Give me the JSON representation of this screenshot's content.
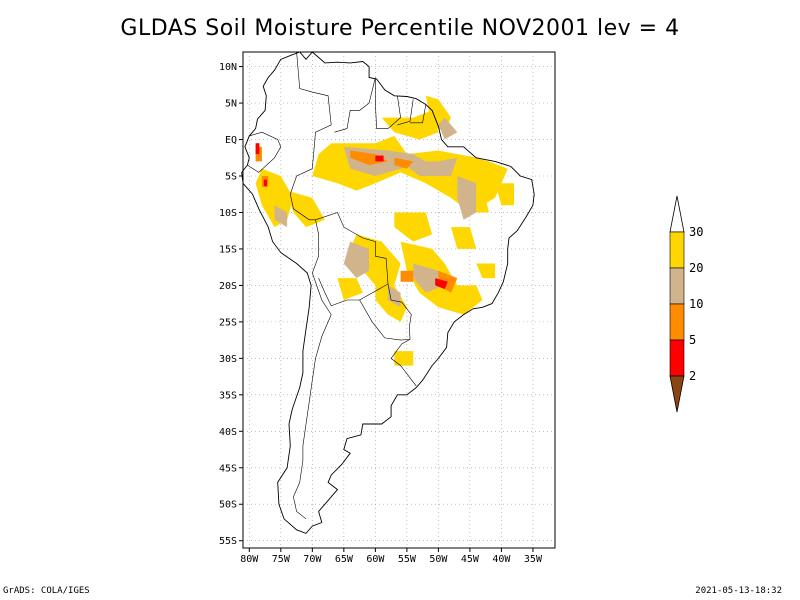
{
  "title": "GLDAS Soil Moisture Percentile NOV2001 lev = 4",
  "footer": {
    "left": "GrADS: COLA/IGES",
    "right": "2021-05-13-18:32"
  },
  "map": {
    "lat_labels": [
      "10N",
      "5N",
      "EQ",
      "5S",
      "10S",
      "15S",
      "20S",
      "25S",
      "30S",
      "35S",
      "40S",
      "45S",
      "50S",
      "55S"
    ],
    "lon_labels": [
      "80W",
      "75W",
      "70W",
      "65W",
      "60W",
      "55W",
      "50W",
      "45W",
      "40W",
      "35W"
    ],
    "lat_values": [
      10,
      5,
      0,
      -5,
      -10,
      -15,
      -20,
      -25,
      -30,
      -35,
      -40,
      -45,
      -50,
      -55
    ],
    "lon_values": [
      -80,
      -75,
      -70,
      -65,
      -60,
      -55,
      -50,
      -45,
      -40,
      -35
    ],
    "extent": {
      "lon_min": -81,
      "lon_max": -31.5,
      "lat_min": -56,
      "lat_max": 12
    },
    "grid": "dotted"
  },
  "colorbar": {
    "labels": [
      "30",
      "20",
      "10",
      "5",
      "2"
    ],
    "colors": [
      "#FFD700",
      "#D2B48C",
      "#FF8C00",
      "#FF0000",
      "#8B4513"
    ]
  },
  "colors": {
    "yellow": "#FFD700",
    "tan": "#D2B48C",
    "orange": "#FF8C00",
    "red": "#FF0000",
    "white": "#FFFFFF"
  }
}
